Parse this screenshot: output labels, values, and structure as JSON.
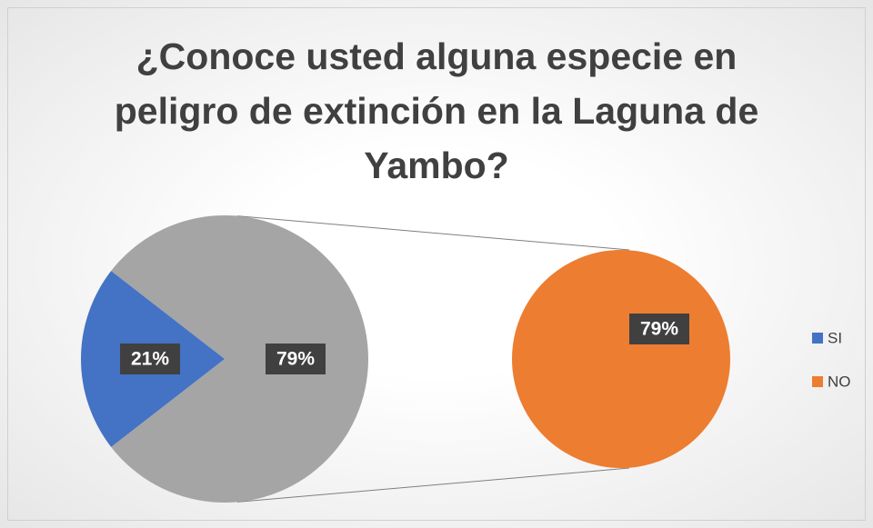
{
  "chart_data": {
    "type": "pie",
    "title": "¿Conoce usted alguna especie en peligro de extinción en la Laguna de Yambo?",
    "categories": [
      "SI",
      "NO"
    ],
    "values": [
      21,
      79
    ],
    "value_labels": [
      "21%",
      "79%"
    ],
    "colors": [
      "#4472c4",
      "#ed7d31"
    ],
    "other_value": 79,
    "other_label": "79%",
    "other_color": "#a5a5a5",
    "legend": "right"
  }
}
